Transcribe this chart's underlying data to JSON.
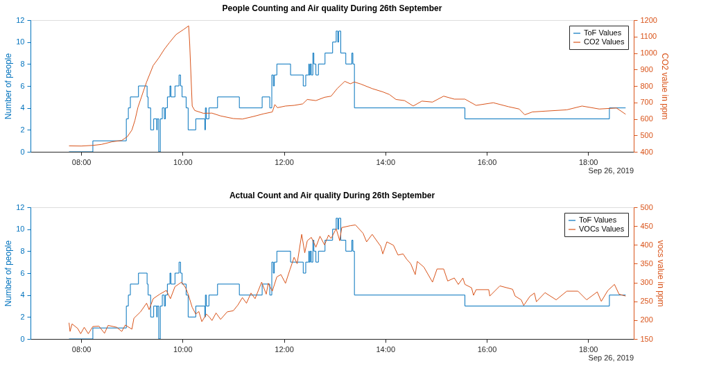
{
  "chart_data": [
    {
      "type": "line",
      "title": "People Counting and Air quality During 26th September",
      "ylabel": "Number of people",
      "y2label": "CO2 value in ppm",
      "xlim": [
        7.0,
        18.9
      ],
      "xticks": [
        {
          "value": 8,
          "label": "08:00"
        },
        {
          "value": 10,
          "label": "10:00"
        },
        {
          "value": 12,
          "label": "12:00"
        },
        {
          "value": 14,
          "label": "14:00"
        },
        {
          "value": 16,
          "label": "16:00"
        },
        {
          "value": 18,
          "label": "18:00"
        }
      ],
      "ylim": [
        0,
        12
      ],
      "yticks": [
        0,
        2,
        4,
        6,
        8,
        10,
        12
      ],
      "y2lim": [
        400,
        1200
      ],
      "y2ticks": [
        400,
        500,
        600,
        700,
        800,
        900,
        1000,
        1100,
        1200
      ],
      "grid": false,
      "legend": "top right",
      "annotations": [
        "Sep 26, 2019"
      ],
      "series": [
        {
          "name": "ToF Values",
          "type": "step",
          "color": "#0072bd",
          "x": [
            7.76,
            8.23,
            8.89,
            8.93,
            8.97,
            9.13,
            9.3,
            9.32,
            9.37,
            9.43,
            9.49,
            9.5,
            9.53,
            9.56,
            9.6,
            9.64,
            9.66,
            9.7,
            9.75,
            9.77,
            9.85,
            9.93,
            9.96,
            9.99,
            10.07,
            10.11,
            10.26,
            10.44,
            10.45,
            10.47,
            10.52,
            10.69,
            11.12,
            11.57,
            11.72,
            11.76,
            11.79,
            11.81,
            11.86,
            12.13,
            12.38,
            12.43,
            12.49,
            12.5,
            12.52,
            12.54,
            12.57,
            12.59,
            12.63,
            12.68,
            12.81,
            12.96,
            13.03,
            13.06,
            13.08,
            13.12,
            13.22,
            13.34,
            13.36,
            13.39,
            15.57,
            18.42,
            18.74
          ],
          "values": [
            0,
            1,
            3,
            4,
            5,
            6,
            5,
            4,
            2,
            3,
            2,
            3,
            0,
            3,
            4,
            3,
            4,
            5,
            6,
            5,
            6,
            7,
            6,
            5,
            4,
            2,
            3,
            2,
            4,
            3,
            4,
            5,
            4,
            5,
            4,
            7,
            6,
            7,
            8,
            7,
            6,
            7,
            8,
            7,
            8,
            7,
            9,
            8,
            7,
            8,
            9,
            10,
            11,
            10,
            11,
            9,
            8,
            9,
            8,
            4,
            3,
            4,
            4
          ]
        },
        {
          "name": "CO2 Values",
          "type": "line",
          "axis": "y2",
          "color": "#d95319",
          "x": [
            7.76,
            8.0,
            8.23,
            8.4,
            8.61,
            8.8,
            8.91,
            9.0,
            9.06,
            9.12,
            9.23,
            9.29,
            9.42,
            9.53,
            9.64,
            9.74,
            9.87,
            10.02,
            10.12,
            10.14,
            10.19,
            10.24,
            10.41,
            10.58,
            10.75,
            11.0,
            11.18,
            11.39,
            11.6,
            11.77,
            11.82,
            11.87,
            12.03,
            12.2,
            12.37,
            12.46,
            12.63,
            12.8,
            12.93,
            13.05,
            13.2,
            13.31,
            13.39,
            13.52,
            13.74,
            13.95,
            14.08,
            14.21,
            14.38,
            14.55,
            14.72,
            14.93,
            15.15,
            15.36,
            15.57,
            15.79,
            16.13,
            16.43,
            16.64,
            16.75,
            16.9,
            17.15,
            17.58,
            17.88,
            18.22,
            18.56,
            18.74
          ],
          "values": [
            436,
            435,
            439,
            445,
            461,
            469,
            492,
            532,
            591,
            671,
            771,
            824,
            924,
            970,
            1023,
            1063,
            1112,
            1143,
            1165,
            1057,
            678,
            651,
            634,
            635,
            618,
            602,
            599,
            614,
            631,
            642,
            687,
            668,
            678,
            682,
            691,
            718,
            711,
            731,
            738,
            784,
            828,
            813,
            824,
            811,
            784,
            764,
            748,
            718,
            711,
            678,
            708,
            702,
            738,
            720,
            720,
            682,
            698,
            674,
            660,
            625,
            642,
            647,
            655,
            678,
            660,
            666,
            628
          ]
        }
      ]
    },
    {
      "type": "line",
      "title": "Actual Count and Air quality During 26th September",
      "ylabel": "Number of people",
      "y2label": "vocs value in ppm",
      "xlim": [
        7.0,
        18.9
      ],
      "xticks": [
        {
          "value": 8,
          "label": "08:00"
        },
        {
          "value": 10,
          "label": "10:00"
        },
        {
          "value": 12,
          "label": "12:00"
        },
        {
          "value": 14,
          "label": "14:00"
        },
        {
          "value": 16,
          "label": "16:00"
        },
        {
          "value": 18,
          "label": "18:00"
        }
      ],
      "ylim": [
        0,
        12
      ],
      "yticks": [
        0,
        2,
        4,
        6,
        8,
        10,
        12
      ],
      "y2lim": [
        150,
        500
      ],
      "y2ticks": [
        150,
        200,
        250,
        300,
        350,
        400,
        450,
        500
      ],
      "grid": false,
      "legend": "top right",
      "annotations": [
        "Sep 26, 2019"
      ],
      "series": [
        {
          "name": "ToF Values",
          "type": "step",
          "color": "#0072bd",
          "x": [
            7.76,
            8.23,
            8.89,
            8.93,
            8.97,
            9.13,
            9.3,
            9.32,
            9.37,
            9.43,
            9.49,
            9.5,
            9.53,
            9.56,
            9.6,
            9.64,
            9.66,
            9.7,
            9.75,
            9.77,
            9.85,
            9.93,
            9.96,
            9.99,
            10.07,
            10.11,
            10.26,
            10.44,
            10.45,
            10.47,
            10.52,
            10.69,
            11.12,
            11.57,
            11.72,
            11.76,
            11.79,
            11.81,
            11.86,
            12.13,
            12.38,
            12.43,
            12.49,
            12.5,
            12.52,
            12.54,
            12.57,
            12.59,
            12.63,
            12.68,
            12.81,
            12.96,
            13.03,
            13.06,
            13.08,
            13.12,
            13.22,
            13.34,
            13.36,
            13.39,
            15.57,
            18.42,
            18.74
          ],
          "values": [
            0,
            1,
            3,
            4,
            5,
            6,
            5,
            4,
            2,
            3,
            2,
            3,
            0,
            3,
            4,
            3,
            4,
            5,
            6,
            5,
            6,
            7,
            6,
            5,
            4,
            2,
            3,
            2,
            4,
            3,
            4,
            5,
            4,
            5,
            4,
            7,
            6,
            7,
            8,
            7,
            6,
            7,
            8,
            7,
            8,
            7,
            9,
            8,
            7,
            8,
            9,
            10,
            11,
            10,
            11,
            9,
            8,
            9,
            8,
            4,
            3,
            4,
            4
          ]
        },
        {
          "name": "VOCs Values",
          "type": "line",
          "axis": "y2",
          "color": "#d95319",
          "x": [
            7.76,
            7.78,
            7.82,
            7.93,
            7.99,
            8.06,
            8.14,
            8.23,
            8.35,
            8.46,
            8.53,
            8.7,
            8.8,
            8.87,
            9.0,
            9.04,
            9.17,
            9.29,
            9.34,
            9.42,
            9.55,
            9.68,
            9.76,
            9.85,
            9.98,
            10.06,
            10.11,
            10.19,
            10.26,
            10.32,
            10.38,
            10.47,
            10.53,
            10.58,
            10.66,
            10.75,
            10.88,
            11.0,
            11.09,
            11.18,
            11.26,
            11.35,
            11.43,
            11.56,
            11.65,
            11.69,
            11.77,
            11.86,
            11.94,
            12.03,
            12.12,
            12.2,
            12.26,
            12.35,
            12.41,
            12.46,
            12.54,
            12.63,
            12.71,
            12.8,
            12.88,
            12.93,
            13.03,
            13.1,
            13.14,
            13.31,
            13.41,
            13.56,
            13.63,
            13.74,
            13.91,
            13.95,
            14.03,
            14.16,
            14.25,
            14.35,
            14.42,
            14.5,
            14.59,
            14.63,
            14.76,
            14.93,
            15.02,
            15.15,
            15.23,
            15.36,
            15.44,
            15.53,
            15.57,
            15.7,
            15.74,
            15.79,
            16.04,
            16.06,
            16.26,
            16.51,
            16.56,
            16.68,
            16.73,
            16.85,
            16.94,
            16.98,
            17.15,
            17.37,
            17.58,
            17.8,
            17.97,
            18.18,
            18.26,
            18.39,
            18.52,
            18.61,
            18.74
          ],
          "values": [
            193,
            170,
            190,
            178,
            164,
            181,
            164,
            183,
            184,
            165,
            186,
            181,
            170,
            187,
            176,
            205,
            222,
            245,
            228,
            257,
            269,
            279,
            257,
            289,
            301,
            286,
            269,
            234,
            216,
            223,
            196,
            216,
            208,
            199,
            219,
            202,
            222,
            225,
            240,
            260,
            245,
            272,
            257,
            301,
            269,
            298,
            277,
            315,
            321,
            298,
            335,
            367,
            350,
            428,
            379,
            411,
            420,
            394,
            423,
            400,
            426,
            417,
            443,
            411,
            446,
            451,
            453,
            431,
            408,
            428,
            396,
            376,
            408,
            399,
            373,
            376,
            362,
            350,
            321,
            356,
            341,
            301,
            336,
            336,
            304,
            312,
            295,
            312,
            295,
            286,
            266,
            281,
            281,
            264,
            291,
            282,
            264,
            254,
            239,
            263,
            272,
            249,
            273,
            254,
            277,
            277,
            254,
            275,
            250,
            279,
            295,
            269,
            264
          ]
        }
      ]
    }
  ]
}
